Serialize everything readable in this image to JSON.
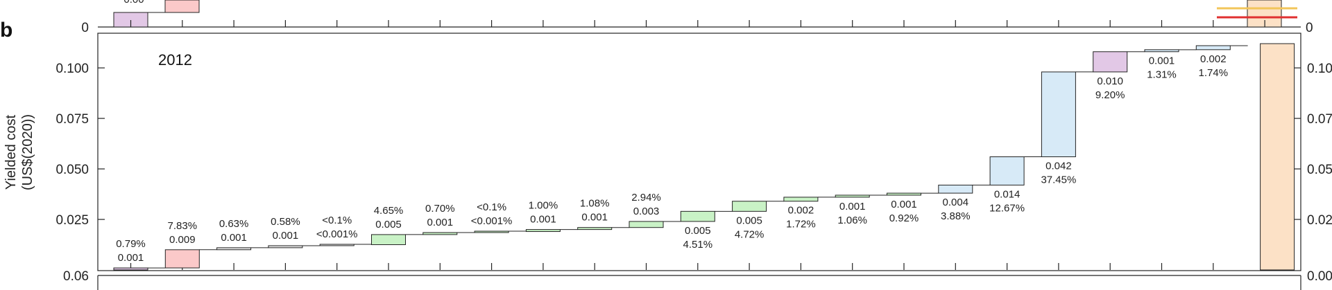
{
  "chart_data": {
    "type": "bar",
    "subtype": "waterfall",
    "panel_label": "b",
    "year_label": "2012",
    "ylabel": "Yielded cost (US$(2020))",
    "ylim": [
      0,
      0.12
    ],
    "yticks": [
      "0.025",
      "0.050",
      "0.075",
      "0.100"
    ],
    "left_axis_bottom_label": "0.06",
    "top_panel_left_zero": "0",
    "top_panel_right_zero": "0",
    "top_panel_partial_label": "0.00",
    "right_axis_labels": [
      "0.10",
      "0.07",
      "0.05",
      "0.02",
      "0.00"
    ],
    "grid": false,
    "colors": {
      "purple": "#e2c8e6",
      "pink": "#fbc9c9",
      "gray": "#e6e6e6",
      "green": "#c9f2c6",
      "blue": "#d7eaf7",
      "orange": "#fce1c6",
      "line_red": "#e03030",
      "line_yellow": "#f2c55a"
    },
    "steps": [
      {
        "value": 0.001,
        "label": "0.001",
        "percent": "0.79%",
        "color": "purple",
        "label_pos": "above"
      },
      {
        "value": 0.009,
        "label": "0.009",
        "percent": "7.83%",
        "color": "pink",
        "label_pos": "above"
      },
      {
        "value": 0.001,
        "label": "0.001",
        "percent": "0.63%",
        "color": "gray",
        "label_pos": "above"
      },
      {
        "value": 0.001,
        "label": "0.001",
        "percent": "0.58%",
        "color": "gray",
        "label_pos": "above"
      },
      {
        "value": 0.0005,
        "label": "<0.001%",
        "percent": "<0.1%",
        "color": "gray",
        "label_pos": "above"
      },
      {
        "value": 0.005,
        "label": "0.005",
        "percent": "4.65%",
        "color": "green",
        "label_pos": "above"
      },
      {
        "value": 0.001,
        "label": "0.001",
        "percent": "0.70%",
        "color": "green",
        "label_pos": "above"
      },
      {
        "value": 0.0005,
        "label": "<0.001%",
        "percent": "<0.1%",
        "color": "green",
        "label_pos": "above"
      },
      {
        "value": 0.001,
        "label": "0.001",
        "percent": "1.00%",
        "color": "green",
        "label_pos": "above"
      },
      {
        "value": 0.001,
        "label": "0.001",
        "percent": "1.08%",
        "color": "green",
        "label_pos": "above"
      },
      {
        "value": 0.003,
        "label": "0.003",
        "percent": "2.94%",
        "color": "green",
        "label_pos": "above"
      },
      {
        "value": 0.005,
        "label": "0.005",
        "percent": "4.51%",
        "color": "green",
        "label_pos": "below"
      },
      {
        "value": 0.005,
        "label": "0.005",
        "percent": "4.72%",
        "color": "green",
        "label_pos": "below"
      },
      {
        "value": 0.002,
        "label": "0.002",
        "percent": "1.72%",
        "color": "green",
        "label_pos": "below"
      },
      {
        "value": 0.001,
        "label": "0.001",
        "percent": "1.06%",
        "color": "green",
        "label_pos": "below"
      },
      {
        "value": 0.001,
        "label": "0.001",
        "percent": "0.92%",
        "color": "green",
        "label_pos": "below"
      },
      {
        "value": 0.004,
        "label": "0.004",
        "percent": "3.88%",
        "color": "blue",
        "label_pos": "below"
      },
      {
        "value": 0.014,
        "label": "0.014",
        "percent": "12.67%",
        "color": "blue",
        "label_pos": "below"
      },
      {
        "value": 0.042,
        "label": "0.042",
        "percent": "37.45%",
        "color": "blue",
        "label_pos": "below"
      },
      {
        "value": 0.01,
        "label": "0.010",
        "percent": "9.20%",
        "color": "purple",
        "label_pos": "below"
      },
      {
        "value": 0.001,
        "label": "0.001",
        "percent": "1.31%",
        "color": "blue",
        "label_pos": "below"
      },
      {
        "value": 0.002,
        "label": "0.002",
        "percent": "1.74%",
        "color": "blue",
        "label_pos": "below"
      }
    ],
    "total": {
      "value": 0.112,
      "color": "orange"
    },
    "top_panel_fragment": {
      "bars": [
        {
          "value": 0.3,
          "color": "purple"
        },
        {
          "value": 0.3,
          "color": "pink"
        }
      ],
      "partial_label": "0.00",
      "ref_lines": [
        "line_yellow",
        "line_red"
      ]
    }
  }
}
